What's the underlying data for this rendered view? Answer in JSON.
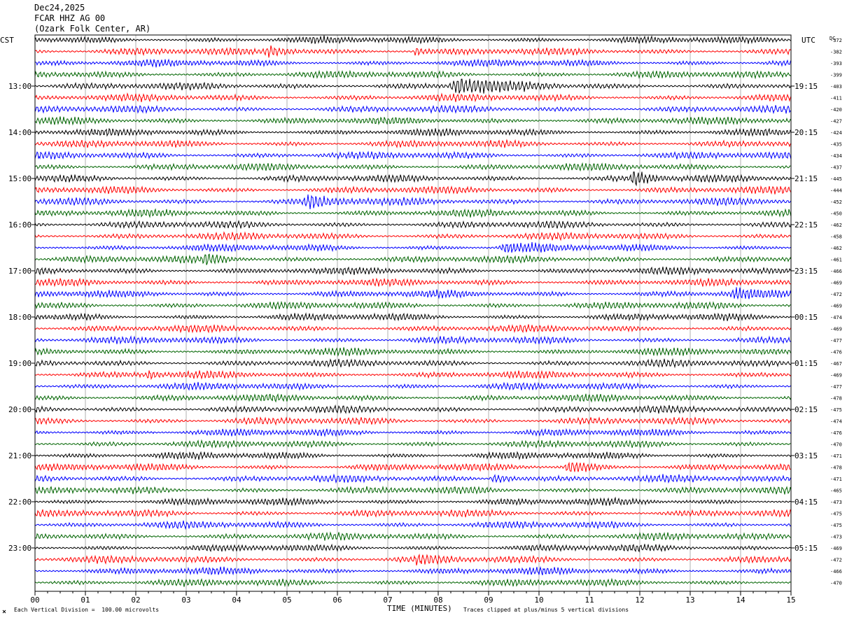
{
  "header": {
    "date": "Dec24,2025",
    "station": "FCAR HHZ AG 00",
    "location": "(Ozark Folk Center, AR)"
  },
  "chart_data": {
    "type": "line",
    "left_axis_title": "CST",
    "right_axis_title": "UTC",
    "dc_title": "DC",
    "xlabel": "TIME (MINUTES)",
    "xlim": [
      0,
      15
    ],
    "x_ticks": [
      "00",
      "01",
      "02",
      "03",
      "04",
      "05",
      "06",
      "07",
      "08",
      "09",
      "10",
      "11",
      "12",
      "13",
      "14",
      "15"
    ],
    "left_ticks": [
      "13:00",
      "14:00",
      "15:00",
      "16:00",
      "17:00",
      "18:00",
      "19:00",
      "20:00",
      "21:00",
      "22:00",
      "23:00"
    ],
    "right_ticks": [
      "19:15",
      "20:15",
      "21:15",
      "22:15",
      "23:15",
      "00:15",
      "01:15",
      "02:15",
      "03:15",
      "04:15",
      "05:15"
    ],
    "first_tick_row": 4,
    "rows_per_hour": 4,
    "dc_offsets": [
      -372,
      -382,
      -393,
      -399,
      -403,
      -411,
      -420,
      -427,
      -424,
      -435,
      -434,
      -437,
      -445,
      -444,
      -452,
      -450,
      -462,
      -458,
      -462,
      -461,
      -466,
      -469,
      -472,
      -469,
      -474,
      -469,
      -477,
      -476,
      -467,
      -469,
      -477,
      -478,
      -475,
      -474,
      -476,
      -470,
      -471,
      -478,
      -471,
      -465,
      -473,
      -475,
      -475,
      -473,
      -469,
      -472,
      -466,
      -470
    ],
    "trace_colors": [
      "#000000",
      "#ff0000",
      "#0000ff",
      "#006400"
    ],
    "events": [
      {
        "row": 1,
        "start_min": 4.5,
        "end_min": 6.2,
        "amp": 1.5
      },
      {
        "row": 1,
        "start_min": 7.5,
        "end_min": 7.9,
        "amp": 1.6
      },
      {
        "row": 4,
        "start_min": 8.2,
        "end_min": 10.5,
        "amp": 2.6
      },
      {
        "row": 12,
        "start_min": 11.8,
        "end_min": 12.7,
        "amp": 2.4
      },
      {
        "row": 14,
        "start_min": 5.3,
        "end_min": 6.8,
        "amp": 1.9
      },
      {
        "row": 18,
        "start_min": 9.2,
        "end_min": 10.8,
        "amp": 1.3
      },
      {
        "row": 19,
        "start_min": 3.3,
        "end_min": 4.4,
        "amp": 1.4
      },
      {
        "row": 22,
        "start_min": 13.8,
        "end_min": 14.8,
        "amp": 1.3
      },
      {
        "row": 29,
        "start_min": 2.2,
        "end_min": 2.6,
        "amp": 1.5
      },
      {
        "row": 37,
        "start_min": 10.5,
        "end_min": 11.8,
        "amp": 1.9
      },
      {
        "row": 38,
        "start_min": 9.0,
        "end_min": 10.4,
        "amp": 1.4
      },
      {
        "row": 45,
        "start_min": 7.5,
        "end_min": 8.4,
        "amp": 1.2
      }
    ],
    "footnote_left": "Each Vertical Division =  100.00 microvolts",
    "footnote_right": "Traces clipped at plus/minus 5 vertical divisions"
  }
}
